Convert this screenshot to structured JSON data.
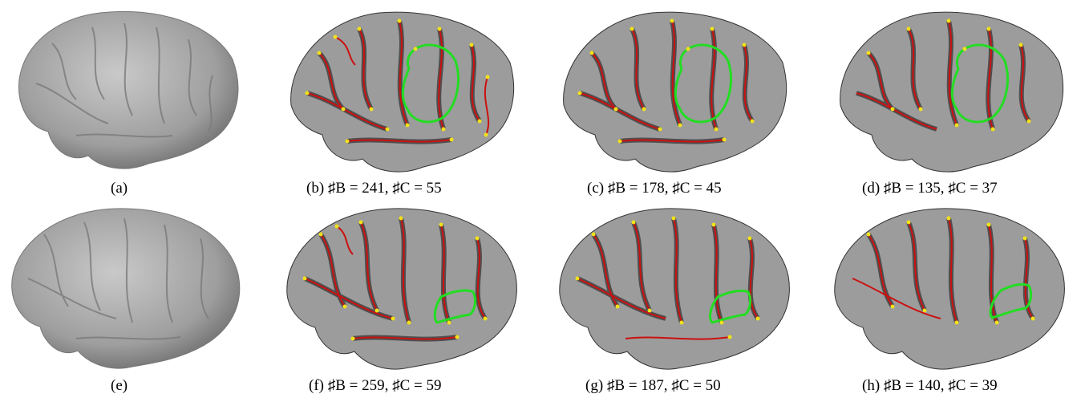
{
  "figure": {
    "panels": [
      {
        "id": "a",
        "caption": "(a)",
        "row": 0,
        "col": 0,
        "type": "plain"
      },
      {
        "id": "b",
        "caption": "(b) ♯B = 241, ♯C = 55",
        "row": 0,
        "col": 1,
        "type": "sulci"
      },
      {
        "id": "c",
        "caption": "(c) ♯B = 178, ♯C = 45",
        "row": 0,
        "col": 2,
        "type": "sulci"
      },
      {
        "id": "d",
        "caption": "(d) ♯B = 135, ♯C = 37",
        "row": 0,
        "col": 3,
        "type": "sulci"
      },
      {
        "id": "e",
        "caption": "(e)",
        "row": 1,
        "col": 0,
        "type": "plain"
      },
      {
        "id": "f",
        "caption": "(f) ♯B = 259, ♯C = 59",
        "row": 1,
        "col": 1,
        "type": "sulci"
      },
      {
        "id": "g",
        "caption": "(g) ♯B = 187, ♯C = 50",
        "row": 1,
        "col": 2,
        "type": "sulci"
      },
      {
        "id": "h",
        "caption": "(h) ♯B = 140, ♯C = 39",
        "row": 1,
        "col": 3,
        "type": "sulci"
      }
    ],
    "colors": {
      "surface": "#a8a8a8",
      "surface_dark": "#1a1a1a",
      "sulcus_line": "#cc1010",
      "branch_point": "#f2e11a",
      "region_outline": "#22dd22"
    }
  }
}
